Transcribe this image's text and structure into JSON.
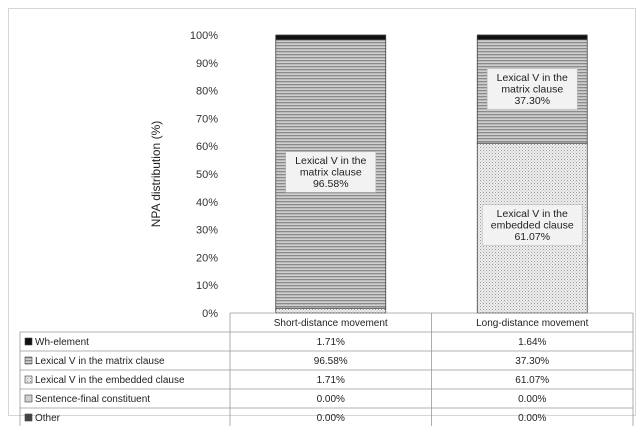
{
  "chart_data": {
    "type": "bar",
    "stacked": true,
    "ylabel": "NPA distribution (%)",
    "ylim": [
      0,
      100
    ],
    "y_ticks": [
      "0%",
      "10%",
      "20%",
      "30%",
      "40%",
      "50%",
      "60%",
      "70%",
      "80%",
      "90%",
      "100%"
    ],
    "categories": [
      "Short-distance movement",
      "Long-distance movement"
    ],
    "series": [
      {
        "name": "Wh-element",
        "values": [
          1.71,
          1.64
        ],
        "labels": [
          "1.71%",
          "1.64%"
        ],
        "color": "#111111",
        "pattern": "solid"
      },
      {
        "name": "Lexical V in the matrix clause",
        "values": [
          96.58,
          37.3
        ],
        "labels": [
          "96.58%",
          "37.30%"
        ],
        "color": "#9a9a9a",
        "pattern": "hstripes"
      },
      {
        "name": "Lexical V in the embedded clause",
        "values": [
          1.71,
          61.07
        ],
        "labels": [
          "1.71%",
          "61.07%"
        ],
        "color": "#dcdcdc",
        "pattern": "dots"
      },
      {
        "name": "Sentence-final constituent",
        "values": [
          0.0,
          0.0
        ],
        "labels": [
          "0.00%",
          "0.00%"
        ],
        "color": "#eeeeee",
        "pattern": "light"
      },
      {
        "name": "Other",
        "values": [
          0.0,
          0.0
        ],
        "labels": [
          "0.00%",
          "0.00%"
        ],
        "color": "#555555",
        "pattern": "dark"
      }
    ],
    "bar_annotations": [
      {
        "lines": [
          "Lexical V in the",
          "matrix clause",
          "96.58%"
        ]
      },
      {
        "lines": [
          "Lexical V in the",
          "matrix clause",
          "37.30%"
        ]
      },
      {
        "lines": [
          "Lexical V in the",
          "embedded clause",
          "61.07%"
        ]
      }
    ],
    "grid": false,
    "legend": "data-table-below"
  }
}
